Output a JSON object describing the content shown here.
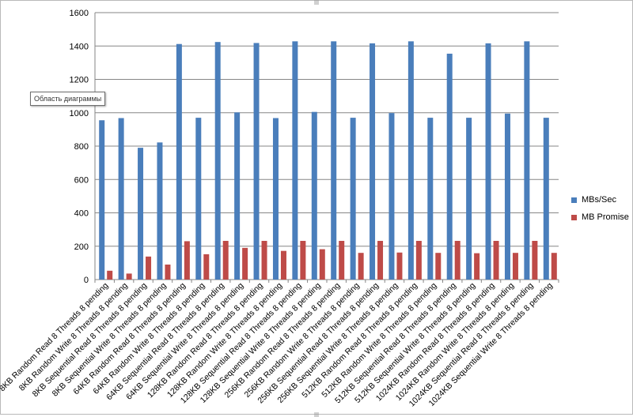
{
  "tooltip": "Область диаграммы",
  "chart_data": {
    "type": "bar",
    "title": "",
    "xlabel": "",
    "ylabel": "",
    "ylim": [
      0,
      1600
    ],
    "yticks": [
      0,
      200,
      400,
      600,
      800,
      1000,
      1200,
      1400,
      1600
    ],
    "grid": true,
    "legend_position": "right",
    "categories": [
      "8KB Random Read 8 Threads 8 pending",
      "8KB Random Write 8 Threads 8 pending",
      "8KB Sequential Read 8 Threads 8 pending",
      "8KB Sequential Write 8 Threads 8 pending",
      "64KB Random Read 8 Threads 8 pending",
      "64KB Random Write 8 Threads 8 pending",
      "64KB Sequential Read 8 Threads 8 pending",
      "64KB Sequential Write 8 Threads 8 pending",
      "128KB Random Read 8 Threads 8 pending",
      "128KB Random Write 8 Threads 8 pending",
      "128KB Sequential Read 8 Threads 8 pending",
      "128KB Sequential Write 8 Threads 8 pending",
      "256KB Random Read 8 Threads 8 pending",
      "256KB Random Write 8 Threads 8 pending",
      "256KB Sequential Read 8 Threads 8 pending",
      "256KB Sequential Write 8 Threads 8 pending",
      "512KB Random Read 8 Threads 8 pending",
      "512KB Random Write 8 Threads 8 pending",
      "512KB Sequential Read 8 Threads 8 pending",
      "512KB Sequential Write 8 Threads 8 pending",
      "1024KB Random Read 8 Threads 8 pending",
      "1024KB Random Write 8 Threads 8 pending",
      "1024KB Sequential Read 8 Threads 8 pending",
      "1024KB Sequential Write 8 Threads 8 pending"
    ],
    "series": [
      {
        "name": "MBs/Sec",
        "color": "#4a7ebb",
        "values": [
          955,
          968,
          790,
          822,
          1412,
          970,
          1424,
          1002,
          1418,
          968,
          1428,
          1005,
          1428,
          970,
          1416,
          998,
          1428,
          970,
          1354,
          970,
          1416,
          995,
          1428,
          970
        ]
      },
      {
        "name": "MB Promise",
        "color": "#be4b48",
        "values": [
          53,
          36,
          138,
          90,
          230,
          152,
          232,
          190,
          232,
          172,
          232,
          182,
          232,
          160,
          232,
          162,
          232,
          160,
          232,
          158,
          232,
          160,
          232,
          160
        ]
      }
    ]
  }
}
